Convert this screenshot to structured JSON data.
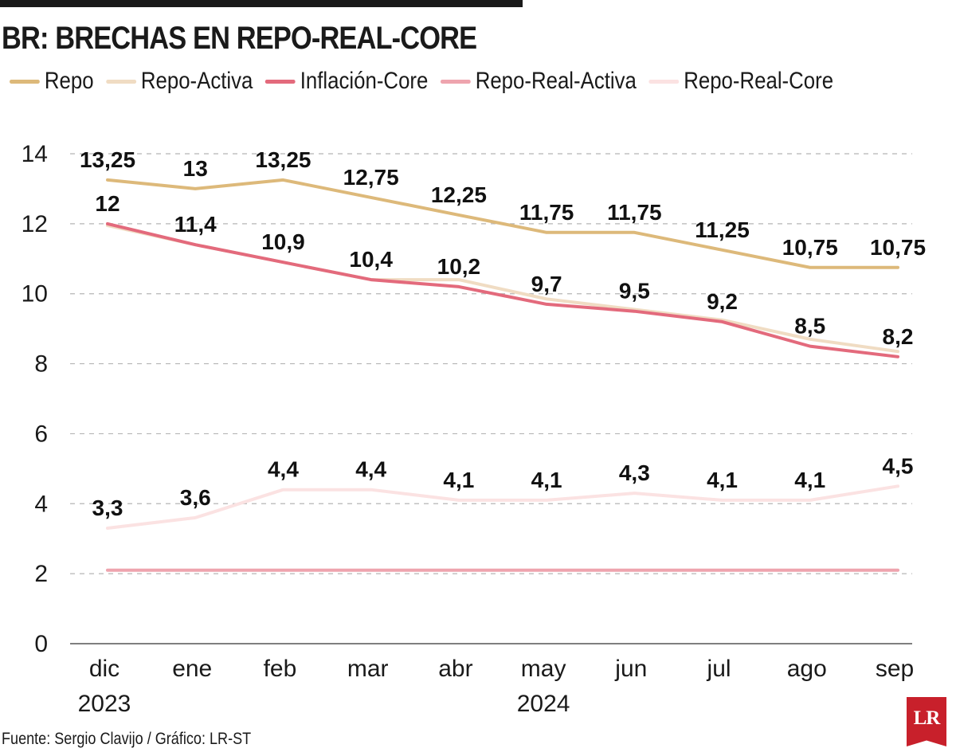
{
  "title": "BR: BRECHAS EN REPO-REAL-CORE",
  "source": "Fuente: Sergio Clavijo / Gráfico: LR-ST",
  "logo_text": "LR",
  "chart_data": {
    "type": "line",
    "title": "BR: BRECHAS EN REPO-REAL-CORE",
    "xlabel": "",
    "ylabel": "",
    "ylim": [
      0,
      14
    ],
    "yticks": [
      0,
      2,
      4,
      6,
      8,
      10,
      12,
      14
    ],
    "grid": "horizontal-dashed",
    "legend_placement": "top",
    "categories": [
      "dic",
      "ene",
      "feb",
      "mar",
      "abr",
      "may",
      "jun",
      "jul",
      "ago",
      "sep"
    ],
    "year_labels": [
      {
        "index": 0,
        "text": "2023"
      },
      {
        "index": 5,
        "text": "2024"
      }
    ],
    "series": [
      {
        "name": "Repo",
        "color": "#ddb97a",
        "values": [
          13.25,
          13,
          13.25,
          12.75,
          12.25,
          11.75,
          11.75,
          11.25,
          10.75,
          10.75
        ],
        "labels": [
          "13,25",
          "13",
          "13,25",
          "12,75",
          "12,25",
          "11,75",
          "11,75",
          "11,25",
          "10,75",
          "10,75"
        ]
      },
      {
        "name": "Repo-Activa",
        "color": "#f0dcc3",
        "values": [
          11.95,
          11.4,
          10.9,
          10.4,
          10.4,
          9.85,
          9.55,
          9.25,
          8.7,
          8.35
        ],
        "labels": []
      },
      {
        "name": "Inflación-Core",
        "color": "#e36a7c",
        "values": [
          12,
          11.4,
          10.9,
          10.4,
          10.2,
          9.7,
          9.5,
          9.2,
          8.5,
          8.2
        ],
        "labels": [
          "12",
          "11,4",
          "10,9",
          "10,4",
          "10,2",
          "9,7",
          "9,5",
          "9,2",
          "8,5",
          "8,2"
        ]
      },
      {
        "name": "Repo-Real-Activa",
        "color": "#eea4ae",
        "values": [
          2.1,
          2.1,
          2.1,
          2.1,
          2.1,
          2.1,
          2.1,
          2.1,
          2.1,
          2.1
        ],
        "labels": []
      },
      {
        "name": "Repo-Real-Core",
        "color": "#fbe2e2",
        "values": [
          3.3,
          3.6,
          4.4,
          4.4,
          4.1,
          4.1,
          4.3,
          4.1,
          4.1,
          4.5
        ],
        "labels": [
          "3,3",
          "3,6",
          "4,4",
          "4,4",
          "4,1",
          "4,1",
          "4,3",
          "4,1",
          "4,1",
          "4,5"
        ]
      }
    ]
  }
}
